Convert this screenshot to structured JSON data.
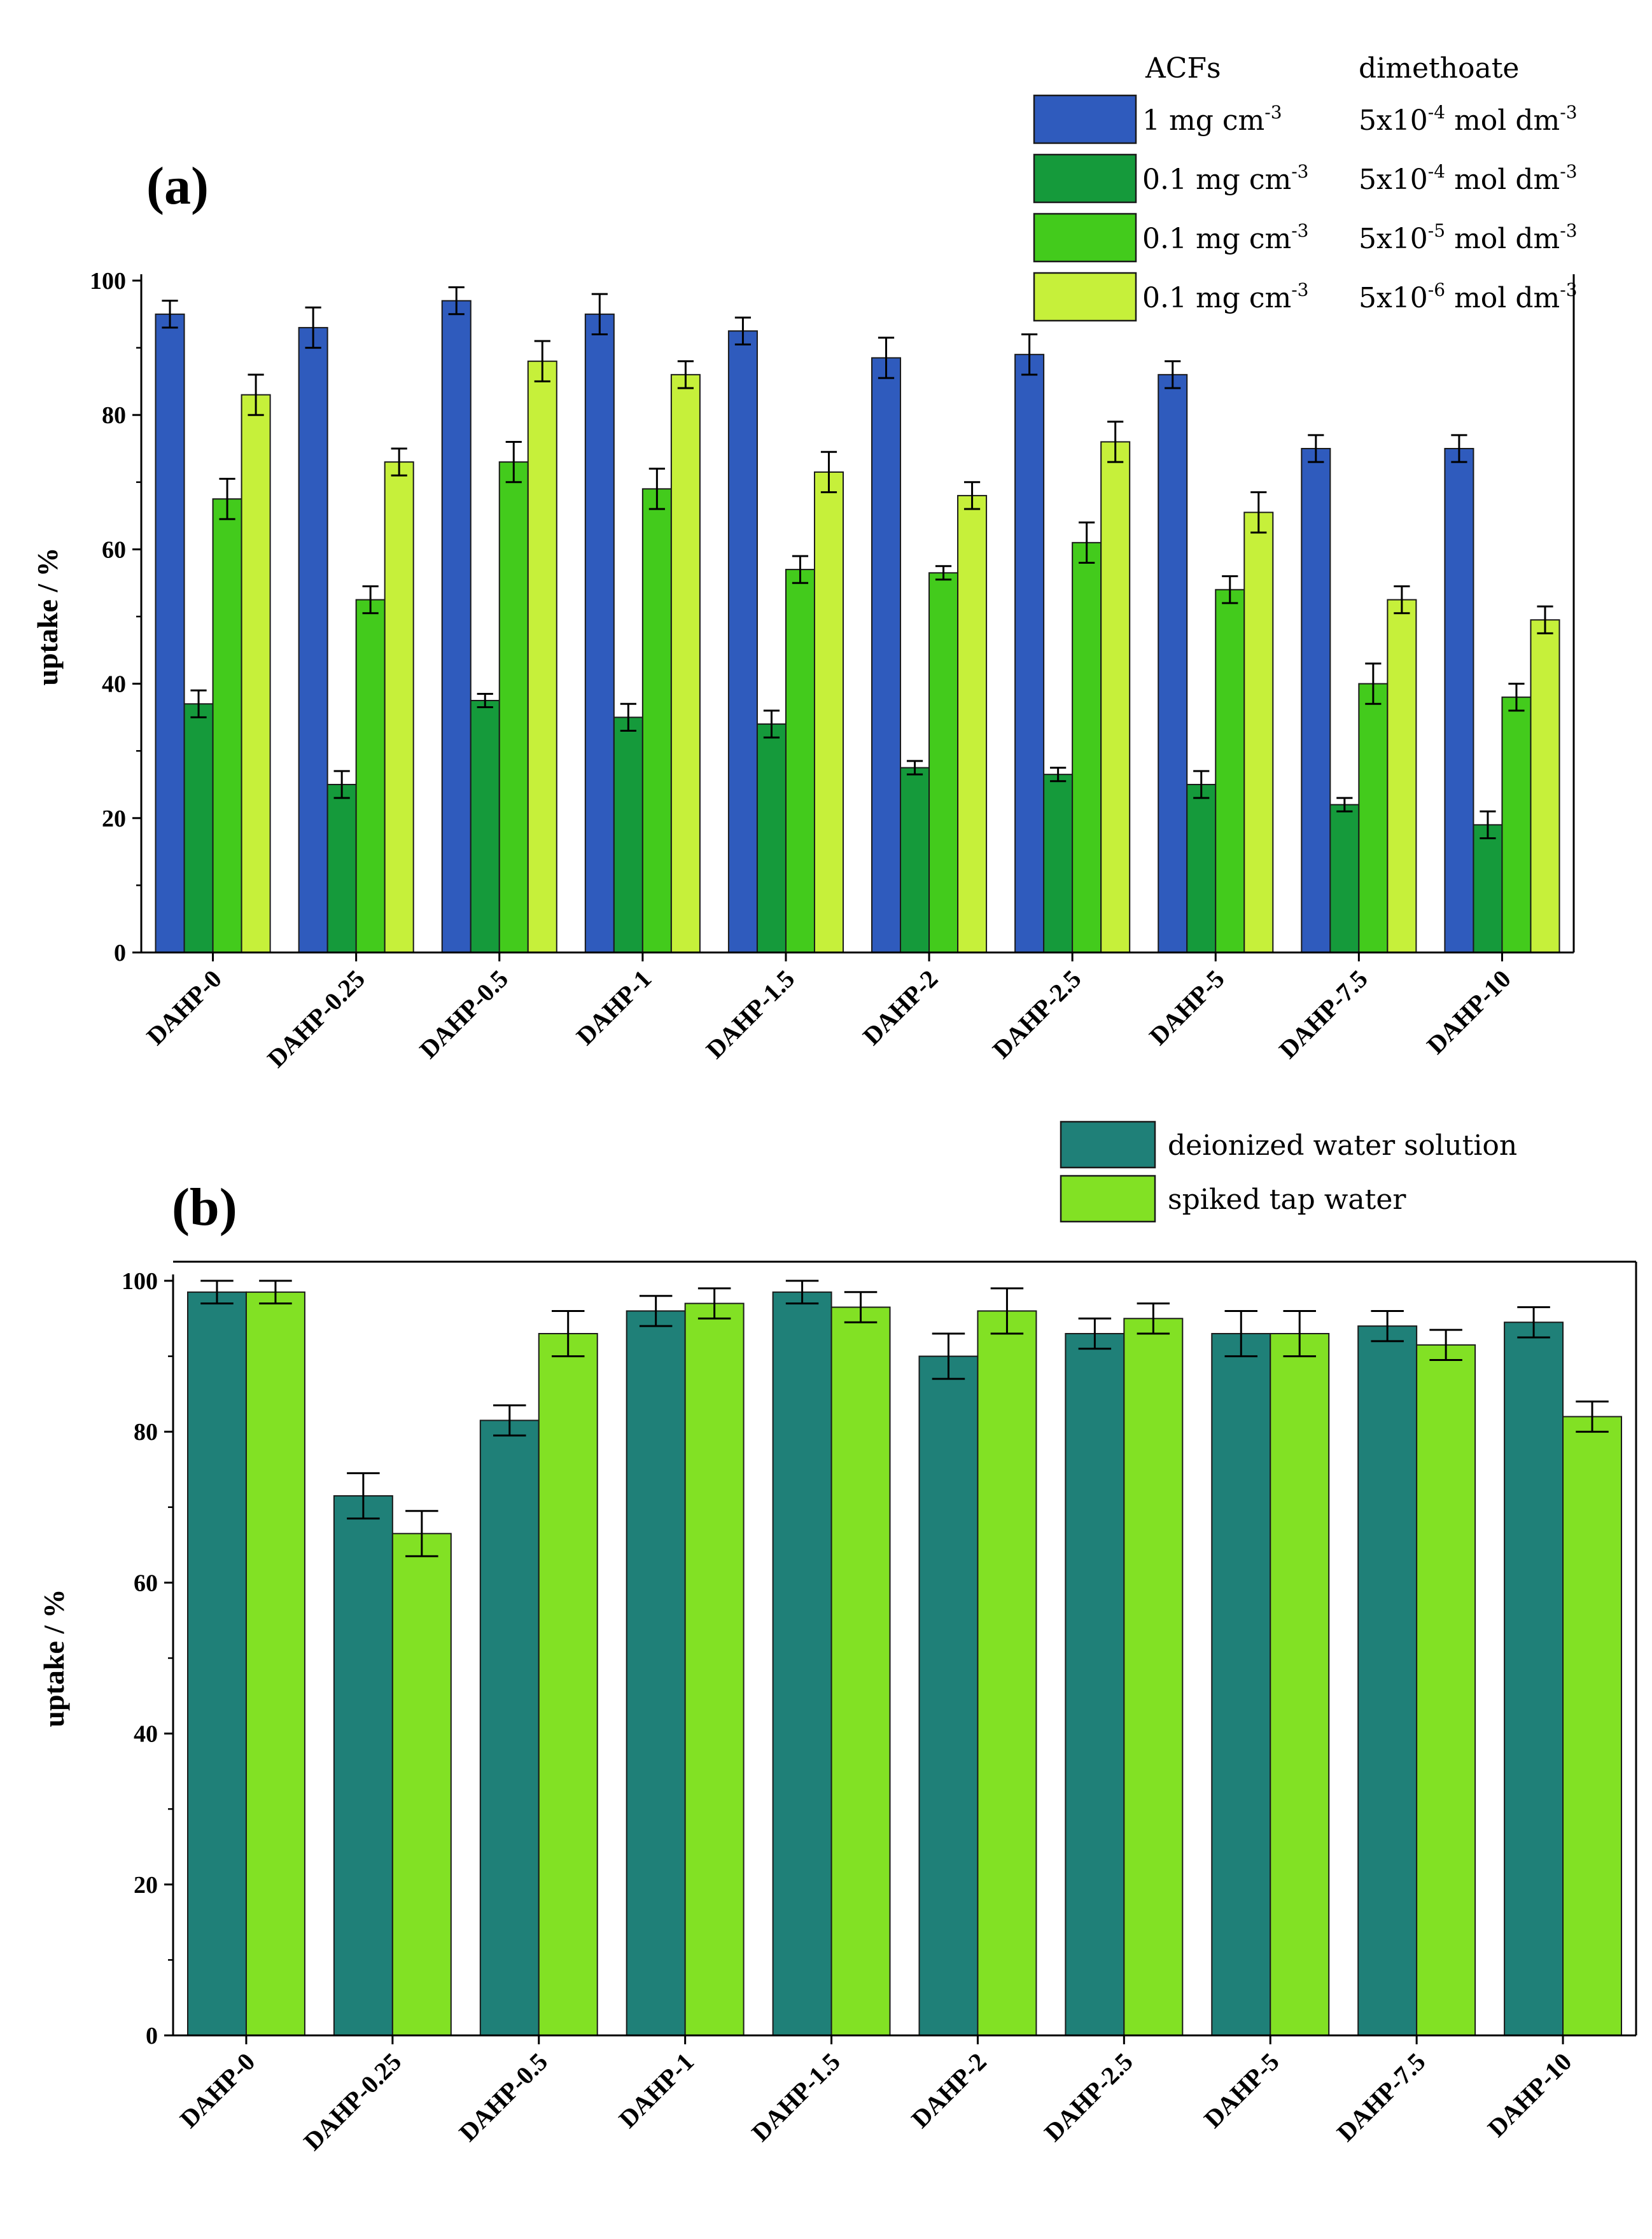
{
  "chart_data": [
    {
      "type": "bar",
      "panel_label": "(a)",
      "ylabel": "uptake / %",
      "ylim": [
        0,
        100
      ],
      "yticks": [
        "0",
        "20",
        "40",
        "60",
        "80",
        "100"
      ],
      "categories": [
        "DAHP-0",
        "DAHP-0.25",
        "DAHP-0.5",
        "DAHP-1",
        "DAHP-1.5",
        "DAHP-2",
        "DAHP-2.5",
        "DAHP-5",
        "DAHP-7.5",
        "DAHP-10"
      ],
      "legend": {
        "position": "top-right",
        "header_acfs": "ACFs",
        "header_dimethoate": "dimethoate"
      },
      "series": [
        {
          "name": "1 mg cm-3 / 5x10-4 mol dm-3",
          "acfs_base": "1 mg cm",
          "acfs_exp": "-3",
          "dim_base": "5x10",
          "dim_exp": "-4",
          "dim_unit": " mol dm",
          "dim_unit_exp": "-3",
          "color": "#2f5bbd",
          "values": [
            95,
            93,
            97,
            95,
            92.5,
            88.5,
            89,
            86,
            75,
            75
          ],
          "errors": [
            2,
            3,
            2,
            3,
            2,
            3,
            3,
            2,
            2,
            2
          ]
        },
        {
          "name": "0.1 mg cm-3 / 5x10-4 mol dm-3",
          "acfs_base": "0.1 mg cm",
          "acfs_exp": "-3",
          "dim_base": "5x10",
          "dim_exp": "-4",
          "dim_unit": " mol dm",
          "dim_unit_exp": "-3",
          "color": "#159a3b",
          "values": [
            37,
            25,
            37.5,
            35,
            34,
            27.5,
            26.5,
            25,
            22,
            19
          ],
          "errors": [
            2,
            2,
            1,
            2,
            2,
            1,
            1,
            2,
            1,
            2
          ]
        },
        {
          "name": "0.1 mg cm-3 / 5x10-5 mol dm-3",
          "acfs_base": "0.1 mg cm",
          "acfs_exp": "-3",
          "dim_base": "5x10",
          "dim_exp": "-5",
          "dim_unit": " mol dm",
          "dim_unit_exp": "-3",
          "color": "#43cb1c",
          "values": [
            67.5,
            52.5,
            73,
            69,
            57,
            56.5,
            61,
            54,
            40,
            38
          ],
          "errors": [
            3,
            2,
            3,
            3,
            2,
            1,
            3,
            2,
            3,
            2
          ]
        },
        {
          "name": "0.1 mg cm-3 / 5x10-6 mol dm-3",
          "acfs_base": "0.1 mg cm",
          "acfs_exp": "-3",
          "dim_base": "5x10",
          "dim_exp": "-6",
          "dim_unit": " mol dm",
          "dim_unit_exp": "-3",
          "color": "#c6f03a",
          "values": [
            83,
            73,
            88,
            86,
            71.5,
            68,
            76,
            65.5,
            52.5,
            49.5
          ],
          "errors": [
            3,
            2,
            3,
            2,
            3,
            2,
            3,
            3,
            2,
            2
          ]
        }
      ]
    },
    {
      "type": "bar",
      "panel_label": "(b)",
      "ylabel": "uptake / %",
      "ylim": [
        0,
        100
      ],
      "yticks": [
        "0",
        "20",
        "40",
        "60",
        "80",
        "100"
      ],
      "categories": [
        "DAHP-0",
        "DAHP-0.25",
        "DAHP-0.5",
        "DAHP-1",
        "DAHP-1.5",
        "DAHP-2",
        "DAHP-2.5",
        "DAHP-5",
        "DAHP-7.5",
        "DAHP-10"
      ],
      "legend": {
        "position": "top-right"
      },
      "series": [
        {
          "name": "deionized water solution",
          "color": "#1f8078",
          "values": [
            98.5,
            71.5,
            81.5,
            96,
            98.5,
            90,
            93,
            93,
            94,
            94.5
          ],
          "errors": [
            1.5,
            3,
            2,
            2,
            1.5,
            3,
            2,
            3,
            2,
            2
          ]
        },
        {
          "name": "spiked tap water",
          "color": "#82e124",
          "values": [
            98.5,
            66.5,
            93,
            97,
            96.5,
            96,
            95,
            93,
            91.5,
            82
          ],
          "errors": [
            1.5,
            3,
            3,
            2,
            2,
            3,
            2,
            3,
            2,
            2
          ]
        }
      ]
    }
  ]
}
